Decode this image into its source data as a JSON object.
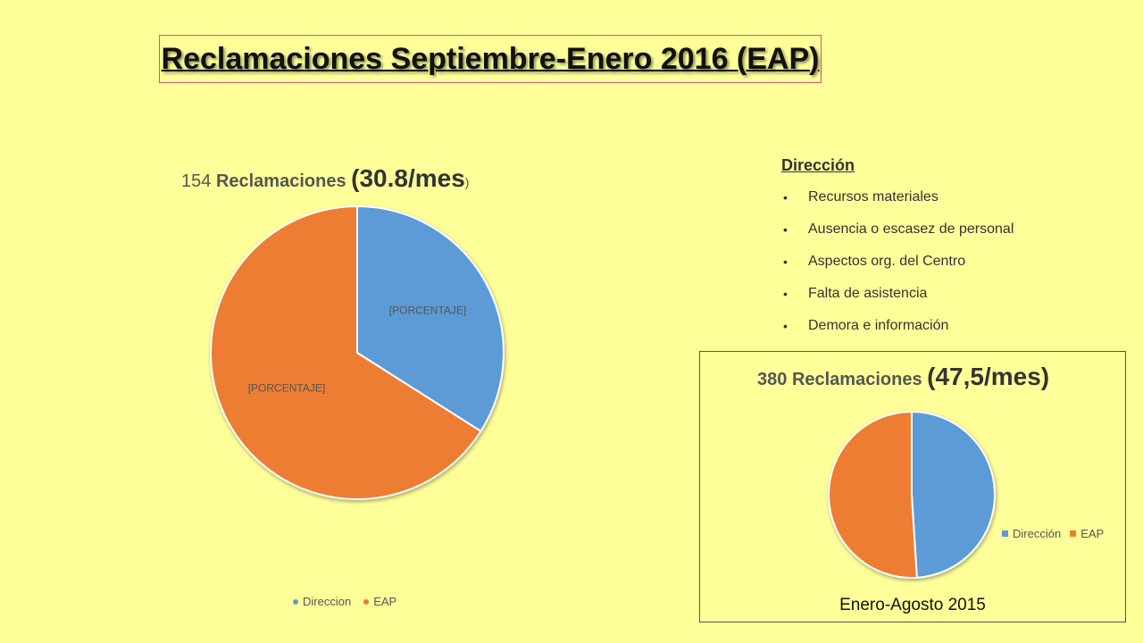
{
  "title": "Reclamaciones Septiembre-Enero 2016 (EAP)",
  "colors": {
    "blue": "#5B9BD5",
    "orange": "#ED7D31",
    "background": "#FFFF99"
  },
  "chart_data": [
    {
      "type": "pie",
      "title_parts": {
        "count": "154",
        "word": "Reclamaciones",
        "open": "(",
        "rate": "30.8/mes",
        "close": ")"
      },
      "categories": [
        "Direccion",
        "EAP"
      ],
      "values": [
        34,
        66
      ],
      "data_labels": [
        "[PORCENTAJE]",
        "[PORCENTAJE]"
      ],
      "legend_position": "bottom"
    },
    {
      "type": "pie",
      "title_parts": {
        "count": "380",
        "word": "Reclamaciones",
        "open": "(",
        "rate": "47,5/mes",
        "close": ")"
      },
      "categories": [
        "Dirección",
        "EAP"
      ],
      "values": [
        49,
        51
      ],
      "legend_position": "right",
      "caption": "Enero-Agosto 2015"
    }
  ],
  "direccion": {
    "heading": "Dirección",
    "items": [
      "Recursos materiales",
      "Ausencia o escasez de personal",
      "Aspectos org. del Centro",
      "Falta de asistencia",
      "Demora e información"
    ]
  }
}
